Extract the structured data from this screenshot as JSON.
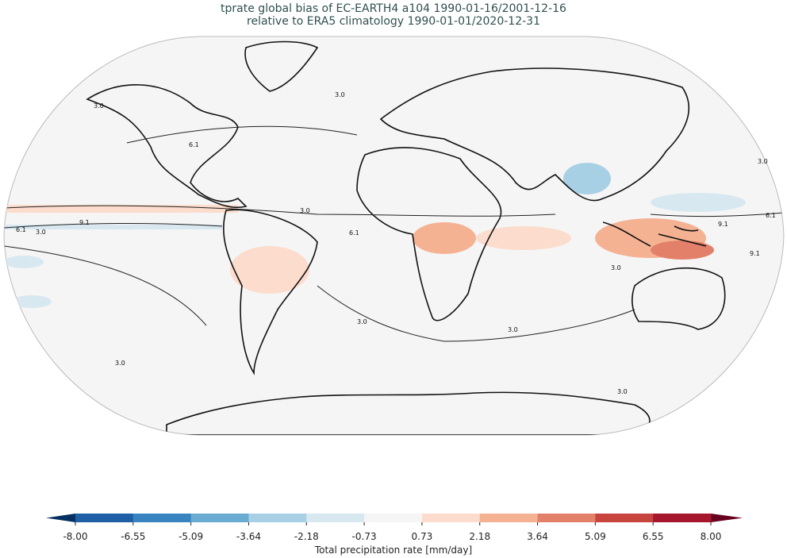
{
  "title": {
    "line1": "tprate global bias of EC-EARTH4 a104 1990-01-16/2001-12-16",
    "line2": "relative to ERA5 climatology 1990-01-01/2020-12-31"
  },
  "map": {
    "projection": "Robinson",
    "background_color": "#f5f5f5",
    "coastline_color": "#000000",
    "contour_labels": [
      "3.0",
      "6.1",
      "9.1"
    ]
  },
  "colorbar": {
    "label": "Total precipitation rate [mm/day]",
    "extend": "both",
    "ticks": [
      "-8.00",
      "-6.55",
      "-5.09",
      "-3.64",
      "-2.18",
      "-0.73",
      "0.73",
      "2.18",
      "3.64",
      "5.09",
      "6.55",
      "8.00"
    ],
    "colors": [
      "#1f5fa6",
      "#3884c0",
      "#6aacd1",
      "#a8d0e4",
      "#d8e8f1",
      "#f5f5f5",
      "#fcdccc",
      "#f5b293",
      "#e3806a",
      "#c8443f",
      "#a6172d"
    ],
    "under_color": "#053061",
    "over_color": "#67001f"
  }
}
